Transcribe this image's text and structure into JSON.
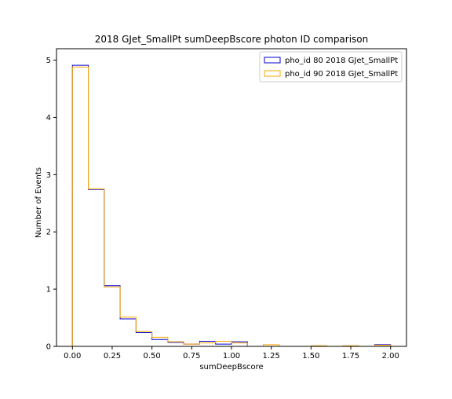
{
  "chart_data": {
    "type": "histogram",
    "title": "2018 GJet_SmallPt sumDeepBscore photon ID comparison",
    "xlabel": "sumDeepBscore",
    "ylabel": "Number of Events",
    "xlim": [
      -0.1,
      2.1
    ],
    "ylim": [
      0,
      5.2
    ],
    "xticks": [
      0.0,
      0.25,
      0.5,
      0.75,
      1.0,
      1.25,
      1.5,
      1.75,
      2.0
    ],
    "xtick_labels": [
      "0.00",
      "0.25",
      "0.50",
      "0.75",
      "1.00",
      "1.25",
      "1.50",
      "1.75",
      "2.00"
    ],
    "yticks": [
      0,
      1,
      2,
      3,
      4,
      5
    ],
    "ytick_labels": [
      "0",
      "1",
      "2",
      "3",
      "4",
      "5"
    ],
    "bin_edges": [
      0.0,
      0.1,
      0.2,
      0.3,
      0.4,
      0.5,
      0.6,
      0.7,
      0.8,
      0.9,
      1.0,
      1.1,
      1.2,
      1.3,
      1.4,
      1.5,
      1.6,
      1.7,
      1.8,
      1.9,
      2.0
    ],
    "grid": false,
    "legend_position": "top-right",
    "series": [
      {
        "name": "pho_id 80 2018 GJet_SmallPt",
        "color": "#0000cc",
        "values": [
          4.91,
          2.74,
          1.06,
          0.48,
          0.24,
          0.12,
          0.07,
          0.04,
          0.09,
          0.04,
          0.08,
          0.0,
          0.0,
          0.0,
          0.0,
          0.0,
          0.0,
          0.0,
          0.0,
          0.03
        ]
      },
      {
        "name": "pho_id 90 2018 GJet_SmallPt",
        "color": "#ffa500",
        "values": [
          4.88,
          2.75,
          1.04,
          0.51,
          0.26,
          0.16,
          0.08,
          0.04,
          0.06,
          0.09,
          0.06,
          0.0,
          0.03,
          0.0,
          0.0,
          0.01,
          0.0,
          0.01,
          0.0,
          0.02
        ]
      }
    ]
  }
}
